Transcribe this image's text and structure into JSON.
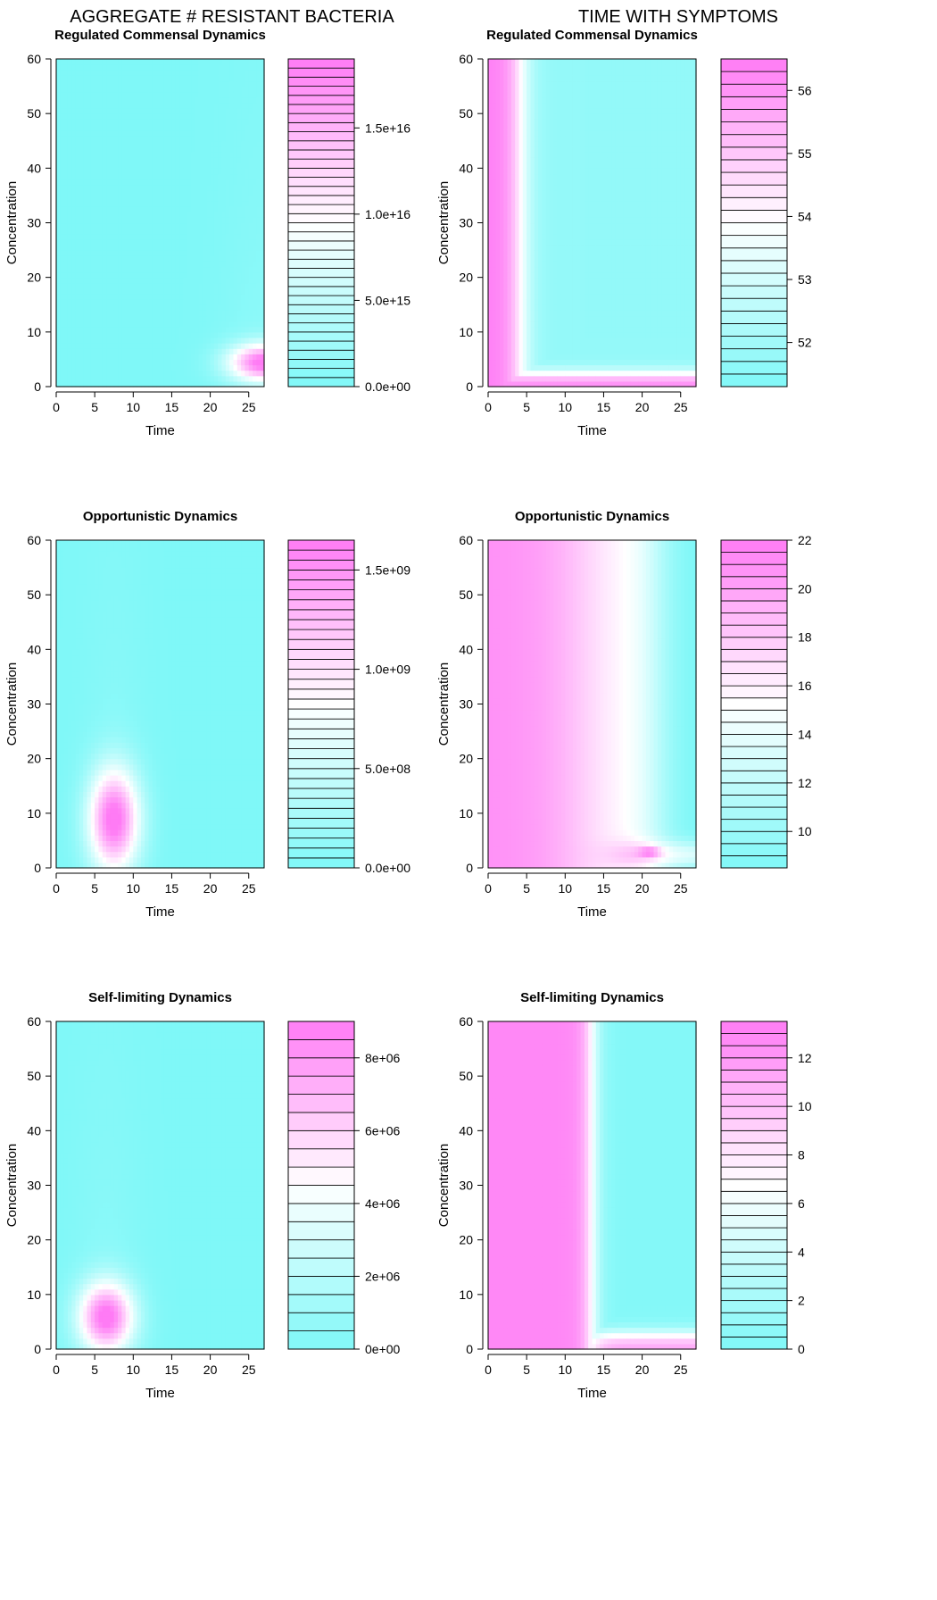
{
  "columns": [
    {
      "title": "AGGREGATE # RESISTANT BACTERIA"
    },
    {
      "title": "TIME WITH SYMPTOMS"
    }
  ],
  "colors": {
    "low": "#7ff8f8",
    "mid": "#ffffff",
    "high": "#ff7bf5",
    "axis": "#000000"
  },
  "chart_data": [
    {
      "type": "heatmap",
      "title": "Regulated Commensal Dynamics",
      "xlabel": "Time",
      "ylabel": "Concentration",
      "xlim": [
        0,
        27
      ],
      "ylim": [
        0,
        60
      ],
      "x_ticks": [
        "0",
        "5",
        "10",
        "15",
        "20",
        "25"
      ],
      "y_ticks": [
        "0",
        "10",
        "20",
        "30",
        "40",
        "50",
        "60"
      ],
      "hotspots": [
        {
          "x": 27,
          "y": 4.5,
          "sx": 3.2,
          "sy": 2.4,
          "peak": 1.0
        }
      ],
      "colorbar": {
        "min": 0,
        "max": 1.9e+16,
        "levels": 36,
        "ticks": [
          {
            "value": 0,
            "label": "0.0e+00"
          },
          {
            "value": 5000000000000000.0,
            "label": "5.0e+15"
          },
          {
            "value": 1e+16,
            "label": "1.0e+16"
          },
          {
            "value": 1.5e+16,
            "label": "1.5e+16"
          }
        ]
      }
    },
    {
      "type": "heatmap",
      "title": "Regulated Commensal Dynamics",
      "xlabel": "Time",
      "ylabel": "Concentration",
      "xlim": [
        0,
        27
      ],
      "ylim": [
        0,
        60
      ],
      "x_ticks": [
        "0",
        "5",
        "10",
        "15",
        "20",
        "25"
      ],
      "y_ticks": [
        "0",
        "10",
        "20",
        "30",
        "40",
        "50",
        "60"
      ],
      "pattern": "regulated-symptoms",
      "colorbar": {
        "min": 51.3,
        "max": 56.5,
        "levels": 26,
        "ticks": [
          {
            "value": 52,
            "label": "52"
          },
          {
            "value": 53,
            "label": "53"
          },
          {
            "value": 54,
            "label": "54"
          },
          {
            "value": 55,
            "label": "55"
          },
          {
            "value": 56,
            "label": "56"
          }
        ]
      }
    },
    {
      "type": "heatmap",
      "title": "Opportunistic Dynamics",
      "xlabel": "Time",
      "ylabel": "Concentration",
      "xlim": [
        0,
        27
      ],
      "ylim": [
        0,
        60
      ],
      "x_ticks": [
        "0",
        "5",
        "10",
        "15",
        "20",
        "25"
      ],
      "y_ticks": [
        "0",
        "10",
        "20",
        "30",
        "40",
        "50",
        "60"
      ],
      "hotspots": [
        {
          "x": 7.5,
          "y": 9,
          "sx": 2.3,
          "sy": 6.5,
          "peak": 1.0
        }
      ],
      "colorbar": {
        "min": 0,
        "max": 1650000000.0,
        "levels": 33,
        "ticks": [
          {
            "value": 0,
            "label": "0.0e+00"
          },
          {
            "value": 500000000.0,
            "label": "5.0e+08"
          },
          {
            "value": 1000000000.0,
            "label": "1.0e+09"
          },
          {
            "value": 1500000000.0,
            "label": "1.5e+09"
          }
        ]
      }
    },
    {
      "type": "heatmap",
      "title": "Opportunistic Dynamics",
      "xlabel": "Time",
      "ylabel": "Concentration",
      "xlim": [
        0,
        27
      ],
      "ylim": [
        0,
        60
      ],
      "x_ticks": [
        "0",
        "5",
        "10",
        "15",
        "20",
        "25"
      ],
      "y_ticks": [
        "0",
        "10",
        "20",
        "30",
        "40",
        "50",
        "60"
      ],
      "pattern": "opportunistic-symptoms",
      "colorbar": {
        "min": 8.5,
        "max": 22.0,
        "levels": 27,
        "ticks": [
          {
            "value": 10,
            "label": "10"
          },
          {
            "value": 12,
            "label": "12"
          },
          {
            "value": 14,
            "label": "14"
          },
          {
            "value": 16,
            "label": "16"
          },
          {
            "value": 18,
            "label": "18"
          },
          {
            "value": 20,
            "label": "20"
          },
          {
            "value": 22,
            "label": "22"
          }
        ]
      }
    },
    {
      "type": "heatmap",
      "title": "Self-limiting Dynamics",
      "xlabel": "Time",
      "ylabel": "Concentration",
      "xlim": [
        0,
        27
      ],
      "ylim": [
        0,
        60
      ],
      "x_ticks": [
        "0",
        "5",
        "10",
        "15",
        "20",
        "25"
      ],
      "y_ticks": [
        "0",
        "10",
        "20",
        "30",
        "40",
        "50",
        "60"
      ],
      "hotspots": [
        {
          "x": 6.5,
          "y": 6,
          "sx": 2.5,
          "sy": 4.5,
          "peak": 1.0
        }
      ],
      "colorbar": {
        "min": 0,
        "max": 9000000.0,
        "levels": 18,
        "ticks": [
          {
            "value": 0,
            "label": "0e+00"
          },
          {
            "value": 2000000.0,
            "label": "2e+06"
          },
          {
            "value": 4000000.0,
            "label": "4e+06"
          },
          {
            "value": 6000000.0,
            "label": "6e+06"
          },
          {
            "value": 8000000.0,
            "label": "8e+06"
          }
        ]
      }
    },
    {
      "type": "heatmap",
      "title": "Self-limiting Dynamics",
      "xlabel": "Time",
      "ylabel": "Concentration",
      "xlim": [
        0,
        27
      ],
      "ylim": [
        0,
        60
      ],
      "x_ticks": [
        "0",
        "5",
        "10",
        "15",
        "20",
        "25"
      ],
      "y_ticks": [
        "0",
        "10",
        "20",
        "30",
        "40",
        "50",
        "60"
      ],
      "pattern": "selflimiting-symptoms",
      "colorbar": {
        "min": 0,
        "max": 13.5,
        "levels": 27,
        "ticks": [
          {
            "value": 0,
            "label": "0"
          },
          {
            "value": 2,
            "label": "2"
          },
          {
            "value": 4,
            "label": "4"
          },
          {
            "value": 6,
            "label": "6"
          },
          {
            "value": 8,
            "label": "8"
          },
          {
            "value": 10,
            "label": "10"
          },
          {
            "value": 12,
            "label": "12"
          }
        ]
      }
    }
  ]
}
